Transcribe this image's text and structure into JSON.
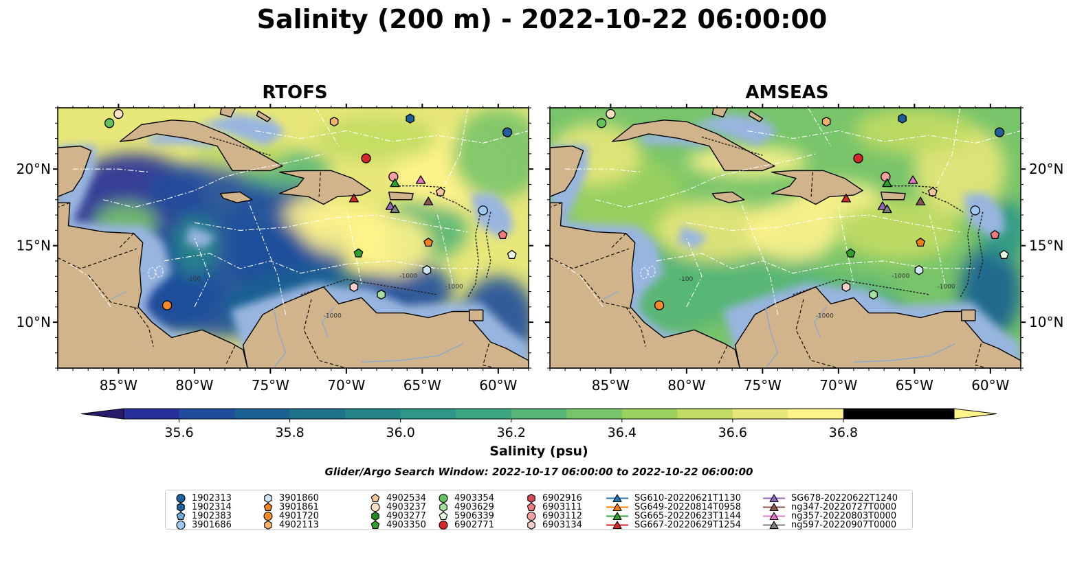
{
  "title": "Salinity (200 m) - 2022-10-22 06:00:00",
  "panels": [
    {
      "id": "rtofs",
      "title": "RTOFS"
    },
    {
      "id": "amseas",
      "title": "AMSEAS"
    }
  ],
  "chart_data": {
    "type": "heatmap",
    "title": "Salinity (200 m) - 2022-10-22 06:00:00",
    "panels": [
      "RTOFS",
      "AMSEAS"
    ],
    "xlim": [
      -89,
      -58
    ],
    "ylim": [
      7,
      24
    ],
    "x_ticks": [
      -85,
      -80,
      -75,
      -70,
      -65,
      -60
    ],
    "x_tick_labels": [
      "85°W",
      "80°W",
      "75°W",
      "70°W",
      "65°W",
      "60°W"
    ],
    "y_ticks": [
      10,
      15,
      20
    ],
    "y_tick_labels": [
      "10°N",
      "15°N",
      "20°N"
    ],
    "bathymetry_contour_labels": [
      "-100",
      "-1000",
      "-1000",
      "-1000"
    ],
    "colorbar": {
      "label": "Salinity (psu)",
      "min": 35.5,
      "max": 37.0,
      "step": 0.1,
      "ticks": [
        35.6,
        35.8,
        36.0,
        36.2,
        36.4,
        36.6,
        36.8
      ],
      "tick_labels": [
        "35.6",
        "35.8",
        "36.0",
        "36.2",
        "36.4",
        "36.6",
        "36.8"
      ],
      "extend": "both",
      "colors": [
        "#2a1a6e",
        "#262f9a",
        "#1f4c9c",
        "#1a6192",
        "#1f728c",
        "#268589",
        "#2f9787",
        "#3ea781",
        "#57b677",
        "#78c46a",
        "#9ad05e",
        "#c2db62",
        "#e8e779",
        "#fff38c"
      ]
    },
    "color_pattern": {
      "RTOFS": "mostly low salinity (35.5–35.9 psu, dark blue) in the western and southern Caribbean, with high salinity (36.6–37.0 psu, green–yellow) north of 17°N and in the eastern basin",
      "AMSEAS": "mostly 36.2–36.8 psu (teal to light green) across the basin, higher (yellow-green) near the Greater Antilles, lower (blue) east of 61°W"
    },
    "search_window": "Glider/Argo Search Window: 2022-10-17 06:00:00 to 2022-10-22 06:00:00",
    "legend_placement": "bottom",
    "platforms": [
      {
        "name": "1902313",
        "marker": "circle",
        "color": "#1f5f9a",
        "lon": -59.4,
        "lat": 22.4
      },
      {
        "name": "1902314",
        "marker": "hexagon",
        "color": "#1f5f9a",
        "lon": -65.8,
        "lat": 23.3
      },
      {
        "name": "1902383",
        "marker": "pentagon",
        "color": "#6fa7d9",
        "lon": null,
        "lat": null
      },
      {
        "name": "3901686",
        "marker": "circle",
        "color": "#9ec9ee",
        "lon": -61.0,
        "lat": 17.3
      },
      {
        "name": "3901860",
        "marker": "hexagon",
        "color": "#cfe6f7",
        "lon": -64.7,
        "lat": 13.4
      },
      {
        "name": "3901861",
        "marker": "pentagon",
        "color": "#f0801a",
        "lon": -64.6,
        "lat": 15.2
      },
      {
        "name": "4901720",
        "marker": "circle",
        "color": "#f68a28",
        "lon": -81.8,
        "lat": 11.1
      },
      {
        "name": "4902113",
        "marker": "hexagon",
        "color": "#f6b26b",
        "lon": -70.8,
        "lat": 23.1
      },
      {
        "name": "4902534",
        "marker": "pentagon",
        "color": "#f7c59a",
        "lon": -63.8,
        "lat": 18.5
      },
      {
        "name": "4903237",
        "marker": "circle",
        "color": "#fde1c4",
        "lon": -85.0,
        "lat": 23.6
      },
      {
        "name": "4903277",
        "marker": "hexagon",
        "color": "#228b22",
        "lon": null,
        "lat": null
      },
      {
        "name": "4903350",
        "marker": "pentagon",
        "color": "#33a02c",
        "lon": -69.2,
        "lat": 14.5
      },
      {
        "name": "4903354",
        "marker": "circle",
        "color": "#62c25a",
        "lon": -85.6,
        "lat": 23.0
      },
      {
        "name": "4903629",
        "marker": "hexagon",
        "color": "#a8e29f",
        "lon": -67.7,
        "lat": 11.8
      },
      {
        "name": "5906339",
        "marker": "pentagon",
        "color": "#e9f8e4",
        "lon": -59.1,
        "lat": 14.4
      },
      {
        "name": "6902771",
        "marker": "circle",
        "color": "#d62728",
        "lon": -68.7,
        "lat": 20.7
      },
      {
        "name": "6902916",
        "marker": "hexagon",
        "color": "#d84b55",
        "lon": null,
        "lat": null
      },
      {
        "name": "6903111",
        "marker": "pentagon",
        "color": "#f07a80",
        "lon": -59.7,
        "lat": 15.7
      },
      {
        "name": "6903112",
        "marker": "circle",
        "color": "#f5a0a0",
        "lon": -66.9,
        "lat": 19.5
      },
      {
        "name": "6903134",
        "marker": "hexagon",
        "color": "#fbcfcc",
        "lon": -69.5,
        "lat": 12.3
      },
      {
        "name": "SG610-20220621T1130",
        "marker": "triangle",
        "color": "#1f77b4",
        "lon": null,
        "lat": null
      },
      {
        "name": "SG649-20220814T0958",
        "marker": "triangle",
        "color": "#ff7f0e",
        "lon": null,
        "lat": null
      },
      {
        "name": "SG665-20220623T1144",
        "marker": "triangle",
        "color": "#2ca02c",
        "lon": -66.8,
        "lat": 19.1
      },
      {
        "name": "SG667-20220629T1254",
        "marker": "triangle",
        "color": "#d62728",
        "lon": -69.5,
        "lat": 18.1
      },
      {
        "name": "SG678-20220622T1240",
        "marker": "triangle",
        "color": "#9467bd",
        "lon": -67.1,
        "lat": 17.6
      },
      {
        "name": "ng347-20220727T0000",
        "marker": "triangle",
        "color": "#8c564b",
        "lon": -64.6,
        "lat": 17.9
      },
      {
        "name": "ng357-20220803T0000",
        "marker": "triangle",
        "color": "#e377c2",
        "lon": -65.1,
        "lat": 19.3
      },
      {
        "name": "ng597-20220907T0000",
        "marker": "triangle",
        "color": "#7f7f7f",
        "lon": -66.8,
        "lat": 17.4
      }
    ]
  }
}
